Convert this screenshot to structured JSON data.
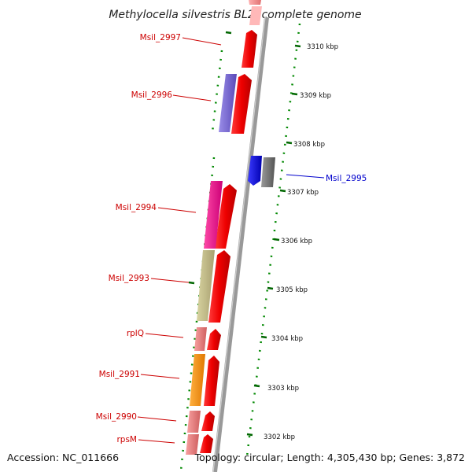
{
  "title": "Methylocella silvestris BL2, complete genome",
  "footer": {
    "accession": "Accession: NC_011666",
    "topology": "Topology: circular; Length: 4,305,430 bp; Genes: 3,872"
  },
  "ticks": [
    "3310 kbp",
    "3309 kbp",
    "3308 kbp",
    "3307 kbp",
    "3306 kbp",
    "3305 kbp",
    "3304 kbp",
    "3303 kbp",
    "3302 kbp"
  ],
  "gene_labels": [
    {
      "name": "Msil_2997",
      "color": "#cc0000"
    },
    {
      "name": "Msil_2996",
      "color": "#cc0000"
    },
    {
      "name": "Msil_2995",
      "color": "#0000cc"
    },
    {
      "name": "Msil_2994",
      "color": "#cc0000"
    },
    {
      "name": "Msil_2993",
      "color": "#cc0000"
    },
    {
      "name": "rplQ",
      "color": "#cc0000"
    },
    {
      "name": "Msil_2991",
      "color": "#cc0000"
    },
    {
      "name": "Msil_2990",
      "color": "#cc0000"
    },
    {
      "name": "rpsM",
      "color": "#cc0000"
    }
  ],
  "colors": {
    "backbone": "#999999",
    "cds_forward": "#ee0000",
    "cds_reverse": "#0000ee",
    "dotted_ring": "#008800"
  }
}
